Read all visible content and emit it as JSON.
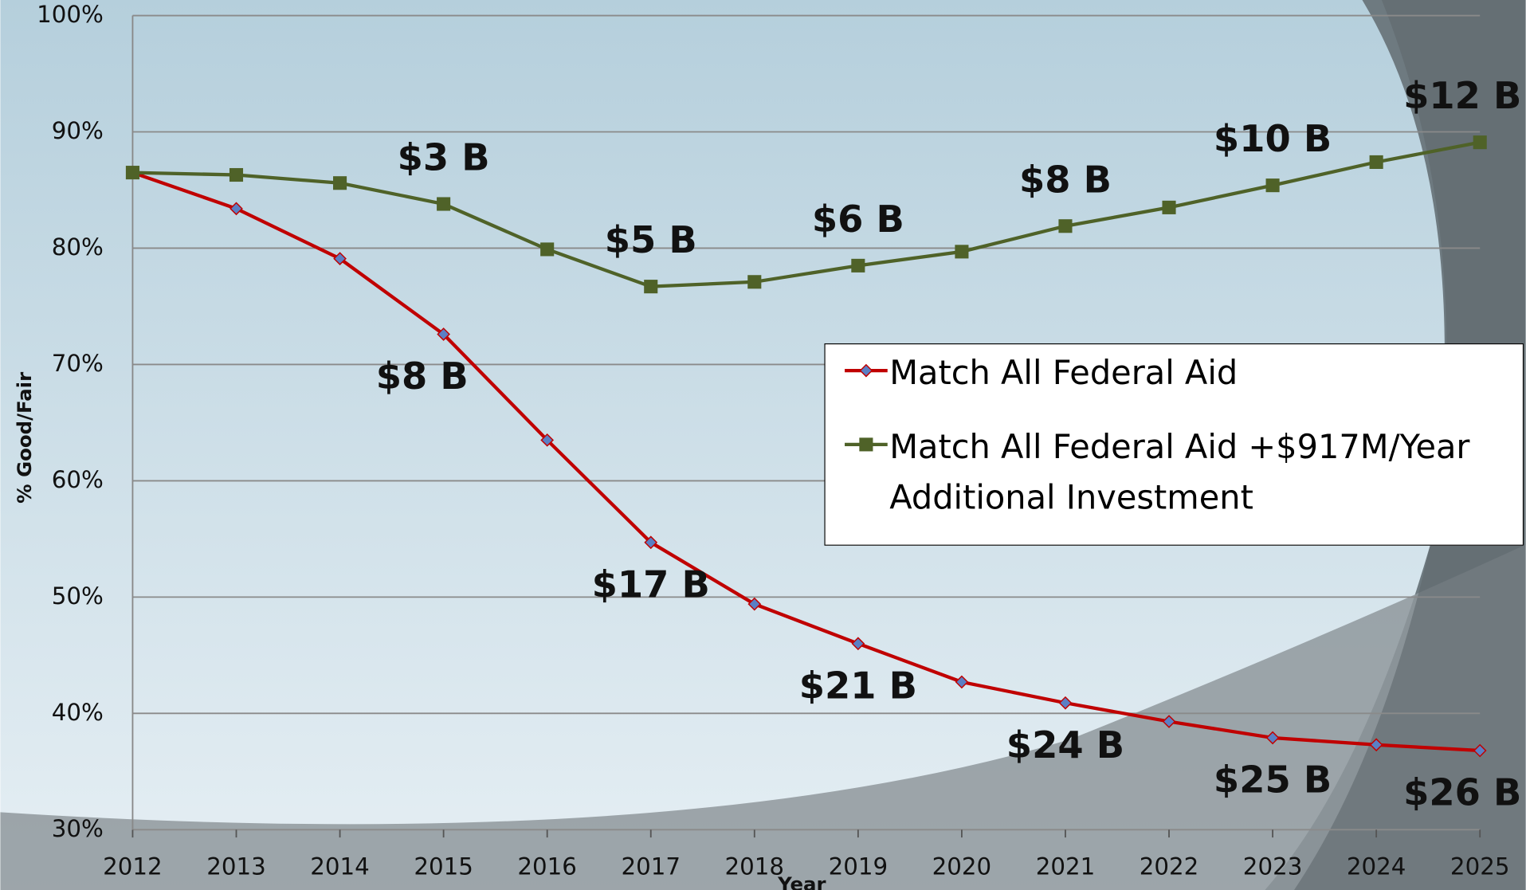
{
  "chart_data": {
    "type": "line",
    "x_label": "Year",
    "y_label": "% Good/Fair",
    "categories": [
      "2012",
      "2013",
      "2014",
      "2015",
      "2016",
      "2017",
      "2018",
      "2019",
      "2020",
      "2021",
      "2022",
      "2023",
      "2024",
      "2025"
    ],
    "series": [
      {
        "name": "Match All Federal Aid",
        "color": "#c00000",
        "marker": "diamond",
        "marker_color": "#5b7fc4",
        "values": [
          86.5,
          83.4,
          79.1,
          72.6,
          63.5,
          54.7,
          49.4,
          46.0,
          42.7,
          40.9,
          39.3,
          37.9,
          37.3,
          36.8
        ],
        "cost_labels": [
          null,
          null,
          null,
          "$8 B",
          null,
          "$17 B",
          null,
          "$21 B",
          null,
          "$24 B",
          null,
          "$25 B",
          null,
          "$26 B"
        ]
      },
      {
        "name": "Match All Federal Aid +$917M/Year Additional Investment",
        "color": "#4f6228",
        "marker": "square",
        "marker_color": "#4f6228",
        "values": [
          86.5,
          86.3,
          85.6,
          83.8,
          79.9,
          76.7,
          77.1,
          78.5,
          79.7,
          81.9,
          83.5,
          85.4,
          87.4,
          89.1
        ],
        "cost_labels": [
          null,
          null,
          null,
          "$3 B",
          null,
          "$5 B",
          null,
          "$6 B",
          null,
          "$8 B",
          null,
          "$10 B",
          null,
          "$12 B"
        ]
      }
    ],
    "ylim": [
      30,
      100
    ],
    "yticks": [
      {
        "value": 30,
        "label": "30%"
      },
      {
        "value": 40,
        "label": "40%"
      },
      {
        "value": 50,
        "label": "50%"
      },
      {
        "value": 60,
        "label": "60%"
      },
      {
        "value": 70,
        "label": "70%"
      },
      {
        "value": 80,
        "label": "80%"
      },
      {
        "value": 90,
        "label": "90%"
      },
      {
        "value": 100,
        "label": "100%"
      }
    ],
    "grid": true,
    "legend": "right"
  }
}
